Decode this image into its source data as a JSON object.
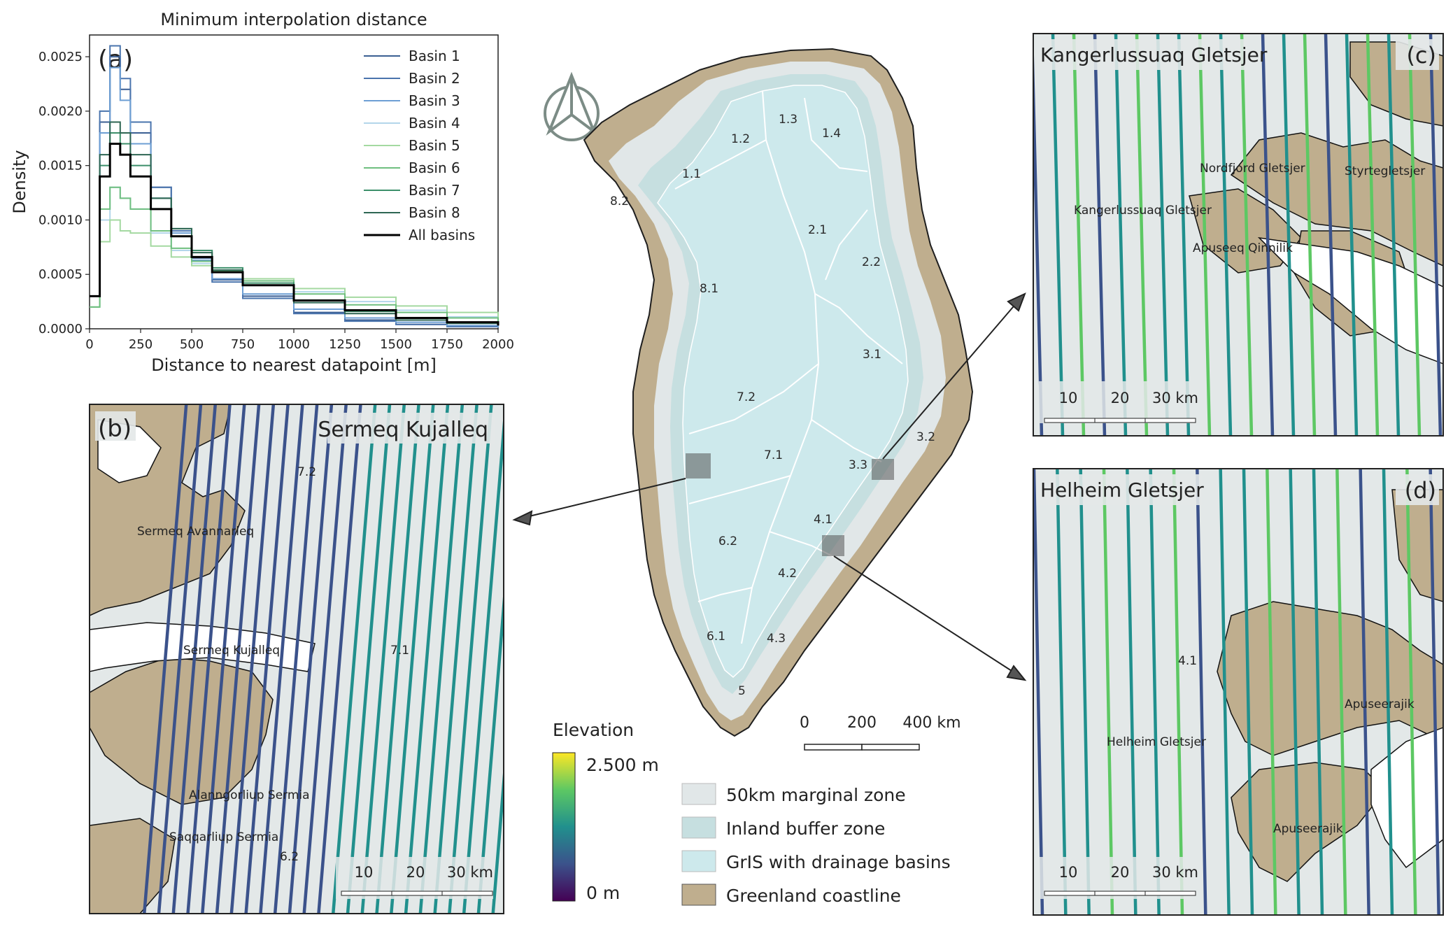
{
  "panel_a": {
    "title": "Minimum interpolation distance",
    "label": "(a)",
    "xlabel": "Distance to nearest datapoint [m]",
    "ylabel": "Density",
    "x_ticks": [
      "0",
      "250",
      "500",
      "750",
      "1000",
      "1250",
      "1500",
      "1750",
      "2000"
    ],
    "y_ticks": [
      "0.0000",
      "0.0005",
      "0.0010",
      "0.0015",
      "0.0020",
      "0.0025"
    ]
  },
  "chart_data": {
    "type": "line",
    "title": "Minimum interpolation distance",
    "xlabel": "Distance to nearest datapoint [m]",
    "ylabel": "Density",
    "xlim": [
      0,
      2000
    ],
    "ylim": [
      0,
      0.0027
    ],
    "legend_position": "top-right",
    "x": [
      0,
      50,
      100,
      150,
      200,
      300,
      400,
      500,
      600,
      750,
      1000,
      1250,
      1500,
      1750,
      2000
    ],
    "series": [
      {
        "name": "Basin 1",
        "color": "#3b5f93",
        "values": [
          0.0003,
          0.0019,
          0.0025,
          0.0022,
          0.0018,
          0.0013,
          0.0009,
          0.00065,
          0.00045,
          0.0003,
          0.00015,
          8e-05,
          4e-05,
          2e-05,
          1e-05
        ]
      },
      {
        "name": "Basin 2",
        "color": "#4a74ad",
        "values": [
          0.0003,
          0.002,
          0.0026,
          0.0023,
          0.0019,
          0.0013,
          0.0009,
          0.00063,
          0.00043,
          0.00028,
          0.00014,
          7e-05,
          4e-05,
          2e-05,
          1e-05
        ]
      },
      {
        "name": "Basin 3",
        "color": "#6d9fd4",
        "values": [
          0.0003,
          0.0018,
          0.0024,
          0.0021,
          0.0017,
          0.0012,
          0.00088,
          0.00063,
          0.00046,
          0.00032,
          0.00018,
          0.0001,
          6e-05,
          3e-05,
          1e-05
        ]
      },
      {
        "name": "Basin 4",
        "color": "#b3d6ea",
        "values": [
          0.0002,
          0.001,
          0.0013,
          0.0012,
          0.0011,
          0.00088,
          0.00072,
          0.0006,
          0.00052,
          0.00044,
          0.00034,
          0.00025,
          0.00017,
          0.00011,
          7e-05
        ]
      },
      {
        "name": "Basin 5",
        "color": "#a4d9a1",
        "values": [
          0.0002,
          0.0008,
          0.001,
          0.0009,
          0.00088,
          0.00076,
          0.00066,
          0.00058,
          0.00052,
          0.00046,
          0.00037,
          0.00029,
          0.00021,
          0.00015,
          9e-05
        ]
      },
      {
        "name": "Basin 6",
        "color": "#6fbf7f",
        "values": [
          0.0002,
          0.0011,
          0.0013,
          0.0012,
          0.0011,
          0.0009,
          0.00074,
          0.00062,
          0.00053,
          0.00044,
          0.00032,
          0.00022,
          0.00015,
          0.0001,
          6e-05
        ]
      },
      {
        "name": "Basin 7",
        "color": "#3c8f6a",
        "values": [
          0.0003,
          0.0015,
          0.0018,
          0.0017,
          0.0015,
          0.0012,
          0.00092,
          0.00072,
          0.00056,
          0.00042,
          0.00026,
          0.00016,
          0.0001,
          6e-05,
          3e-05
        ]
      },
      {
        "name": "Basin 8",
        "color": "#2e6653",
        "values": [
          0.0003,
          0.0016,
          0.0019,
          0.0018,
          0.0016,
          0.0012,
          0.00092,
          0.0007,
          0.00054,
          0.0004,
          0.00024,
          0.00014,
          8e-05,
          5e-05,
          3e-05
        ]
      },
      {
        "name": "All basins",
        "color": "#000000",
        "values": [
          0.0003,
          0.0014,
          0.0017,
          0.0016,
          0.0014,
          0.0011,
          0.00085,
          0.00066,
          0.00052,
          0.0004,
          0.00026,
          0.00017,
          0.0001,
          6e-05,
          3e-05
        ]
      }
    ]
  },
  "main_map": {
    "basin_labels": [
      "1.1",
      "1.2",
      "1.3",
      "1.4",
      "2.1",
      "2.2",
      "3.1",
      "3.2",
      "3.3",
      "4.1",
      "4.2",
      "4.3",
      "5",
      "6.1",
      "6.2",
      "7.1",
      "7.2",
      "8.1",
      "8.2"
    ],
    "scalebar": {
      "labels": [
        "0",
        "200",
        "400 km"
      ]
    }
  },
  "panel_b": {
    "label": "(b)",
    "title": "Sermeq Kujalleq",
    "place_labels": [
      "Sermeq Avannarleq",
      "Sermeq Kujalleq",
      "Alanngorliup Sermia",
      "Saqqarliup Sermia",
      "7.2",
      "7.1",
      "6.2"
    ],
    "scalebar": {
      "labels": [
        "10",
        "20",
        "30 km"
      ]
    }
  },
  "panel_c": {
    "label": "(c)",
    "title": "Kangerlussuaq Gletsjer",
    "place_labels": [
      "Nordfjord Gletsjer",
      "Styrtegletsjer",
      "Kangerlussuaq Gletsjer",
      "Apuseeq Qinnilik"
    ],
    "scalebar": {
      "labels": [
        "10",
        "20",
        "30 km"
      ]
    }
  },
  "panel_d": {
    "label": "(d)",
    "title": "Helheim Gletsjer",
    "place_labels": [
      "4.1",
      "Apuseerajik",
      "Helheim Gletsjer",
      "Apuseerajik"
    ],
    "scalebar": {
      "labels": [
        "10",
        "20",
        "30 km"
      ]
    }
  },
  "colorbar": {
    "title": "Elevation",
    "max_label": "2.500 m",
    "min_label": "0 m",
    "colors": [
      "#440154",
      "#3b528b",
      "#21908d",
      "#5dc863",
      "#fde725"
    ]
  },
  "legend": {
    "items": [
      {
        "label": "50km marginal zone",
        "color": "#e1e7e8"
      },
      {
        "label": "Inland buffer zone",
        "color": "#c6dfe0"
      },
      {
        "label": "GrIS with drainage basins",
        "color": "#cde9ec"
      },
      {
        "label": "Greenland coastline",
        "color": "#bfae8e"
      }
    ]
  },
  "colors": {
    "land": "#bfae8e",
    "ice": "#cde9ec",
    "margin": "#e1e7e8",
    "panel_bg": "#e3e8e8"
  }
}
